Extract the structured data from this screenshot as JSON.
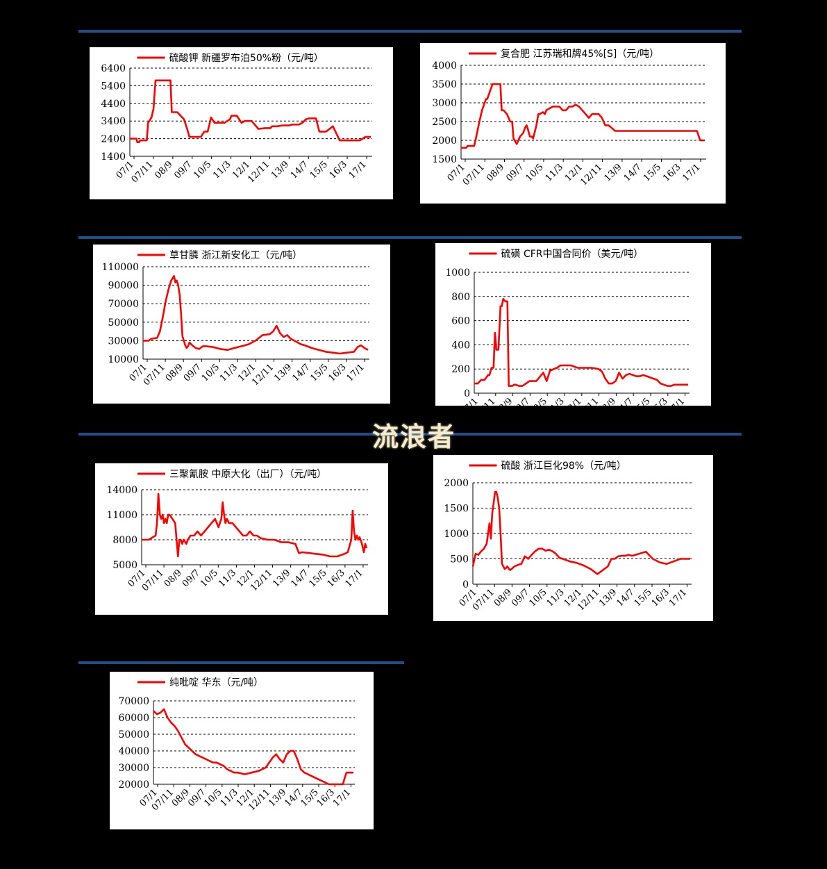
{
  "watermark": "流浪者",
  "colors": {
    "line": "#ff0000",
    "rule": "#1f4e8c",
    "grid": "#000000",
    "background": "#000000"
  },
  "chart_data": [
    {
      "type": "line",
      "title": "",
      "series": [
        {
          "name": "硫酸钾 新疆罗布泊50%粉（元/吨）",
          "x": [
            0,
            10,
            11,
            14,
            15,
            25,
            26,
            27,
            32,
            35,
            38,
            42,
            45,
            55,
            60,
            62,
            70,
            80,
            85,
            88,
            95,
            100,
            105,
            110,
            115,
            120,
            125,
            130,
            140,
            148,
            150,
            158,
            165,
            170,
            173,
            180,
            190,
            200,
            208,
            210,
            218,
            225,
            230,
            235,
            240,
            250,
            255,
            260,
            265,
            275,
            280,
            290,
            300,
            310,
            320,
            330,
            335,
            340,
            348,
            350,
            356
          ],
          "y": [
            2400,
            2400,
            2200,
            2200,
            2300,
            2300,
            2800,
            3300,
            3600,
            4100,
            5700,
            5700,
            5700,
            5700,
            5700,
            3900,
            3900,
            3500,
            2900,
            2500,
            2500,
            2500,
            2500,
            2800,
            2800,
            3600,
            3300,
            3300,
            3300,
            3500,
            3700,
            3700,
            3300,
            3400,
            3400,
            3400,
            2950,
            3000,
            3000,
            3100,
            3100,
            3150,
            3150,
            3150,
            3200,
            3200,
            3300,
            3500,
            3550,
            3550,
            2800,
            2800,
            3100,
            2300,
            2300,
            2300,
            2300,
            2300,
            2500,
            2500,
            2500
          ],
          "x_min": 0,
          "x_max": 356
        }
      ],
      "xticks": [
        "07/1",
        "07/11",
        "08/9",
        "09/7",
        "10/5",
        "11/3",
        "12/1",
        "12/11",
        "13/9",
        "14/7",
        "15/5",
        "16/3",
        "17/1"
      ],
      "yticks": [
        1400,
        2400,
        3400,
        4400,
        5400,
        6400
      ],
      "ylim": [
        1400,
        6400
      ],
      "grid": true,
      "legend": "top"
    },
    {
      "type": "line",
      "title": "",
      "series": [
        {
          "name": "复合肥 江苏瑞和牌45%[S]（元/吨）",
          "x": [
            0,
            8,
            10,
            20,
            22,
            28,
            32,
            38,
            40,
            42,
            48,
            52,
            60,
            62,
            65,
            70,
            75,
            78,
            80,
            85,
            90,
            95,
            98,
            100,
            102,
            105,
            108,
            110,
            115,
            118,
            120,
            125,
            128,
            130,
            140,
            145,
            150,
            155,
            160,
            165,
            170,
            175,
            180,
            190,
            195,
            200,
            205,
            210,
            215,
            220,
            225,
            232,
            235,
            240,
            245,
            360,
            365,
            372
          ],
          "y": [
            1800,
            1800,
            1850,
            1850,
            2000,
            2500,
            2800,
            3100,
            3100,
            3200,
            3500,
            3500,
            3500,
            2800,
            2800,
            2700,
            2500,
            2500,
            2050,
            1900,
            2100,
            2200,
            2350,
            2400,
            2300,
            2100,
            2100,
            2050,
            2400,
            2700,
            2700,
            2750,
            2700,
            2800,
            2900,
            2900,
            2900,
            2800,
            2800,
            2900,
            2900,
            2950,
            2900,
            2700,
            2600,
            2700,
            2700,
            2700,
            2600,
            2400,
            2400,
            2300,
            2250,
            2250,
            2250,
            2250,
            2000,
            2000
          ],
          "x_min": 0,
          "x_max": 372
        }
      ],
      "xticks": [
        "07/1",
        "07/11",
        "08/9",
        "09/7",
        "10/5",
        "11/3",
        "12/1",
        "12/11",
        "13/9",
        "14/7",
        "15/5",
        "16/3",
        "17/1"
      ],
      "yticks": [
        1500,
        2000,
        2500,
        3000,
        3500,
        4000
      ],
      "ylim": [
        1500,
        4000
      ],
      "grid": true,
      "legend": "top"
    },
    {
      "type": "line",
      "title": "",
      "series": [
        {
          "name": "草甘膦 浙江新安化工（元/吨）",
          "x": [
            0,
            8,
            12,
            20,
            24,
            28,
            32,
            36,
            40,
            44,
            46,
            48,
            50,
            52,
            54,
            56,
            58,
            60,
            62,
            64,
            66,
            70,
            75,
            80,
            85,
            90,
            100,
            110,
            120,
            130,
            140,
            150,
            160,
            170,
            180,
            185,
            190,
            195,
            200,
            205,
            210,
            215,
            220,
            225,
            230,
            240,
            250,
            260,
            270,
            280,
            290,
            300,
            305,
            310,
            315,
            320
          ],
          "y": [
            30000,
            30000,
            32000,
            33000,
            40000,
            55000,
            72000,
            85000,
            95000,
            100000,
            93000,
            95000,
            90000,
            80000,
            60000,
            35000,
            30000,
            25000,
            22000,
            24000,
            28000,
            25000,
            22000,
            21000,
            24000,
            24000,
            23000,
            21000,
            20000,
            22000,
            24000,
            26000,
            30000,
            36000,
            37000,
            40000,
            46000,
            38000,
            34000,
            36000,
            32000,
            30000,
            28000,
            26000,
            25000,
            22000,
            20000,
            18000,
            17000,
            16000,
            17000,
            18000,
            23000,
            25000,
            22000,
            20000
          ],
          "x_min": 0,
          "x_max": 320
        }
      ],
      "xticks": [
        "07/1",
        "07/11",
        "08/9",
        "09/7",
        "10/5",
        "11/3",
        "12/1",
        "12/11",
        "13/9",
        "14/7",
        "15/5",
        "16/3",
        "17/1"
      ],
      "yticks": [
        10000,
        30000,
        50000,
        70000,
        90000,
        110000
      ],
      "ylim": [
        10000,
        110000
      ],
      "grid": true,
      "legend": "top"
    },
    {
      "type": "line",
      "title": "",
      "series": [
        {
          "name": "硫磺 CFR中国合同价（美元/吨）",
          "x": [
            0,
            5,
            10,
            15,
            20,
            22,
            25,
            28,
            30,
            32,
            35,
            38,
            40,
            42,
            45,
            48,
            50,
            52,
            55,
            58,
            60,
            65,
            70,
            80,
            90,
            100,
            105,
            110,
            112,
            115,
            120,
            125,
            130,
            140,
            150,
            160,
            170,
            180,
            185,
            190,
            195,
            200,
            205,
            210,
            215,
            220,
            225,
            230,
            235,
            240,
            245,
            250,
            255,
            260,
            265,
            270,
            275,
            280,
            285,
            290,
            300,
            310
          ],
          "y": [
            80,
            80,
            110,
            110,
            150,
            150,
            210,
            210,
            500,
            360,
            360,
            720,
            720,
            780,
            760,
            760,
            60,
            60,
            60,
            70,
            70,
            60,
            60,
            100,
            100,
            170,
            100,
            190,
            190,
            200,
            210,
            230,
            230,
            230,
            210,
            210,
            210,
            200,
            180,
            120,
            80,
            80,
            100,
            170,
            120,
            150,
            160,
            150,
            140,
            140,
            150,
            140,
            130,
            120,
            110,
            80,
            70,
            60,
            60,
            70,
            70,
            70
          ],
          "x_min": 0,
          "x_max": 310
        }
      ],
      "xticks": [
        "07/1",
        "07/11",
        "08/9",
        "09/7",
        "10/5",
        "11/3",
        "12/1",
        "12/11",
        "13/9",
        "14/7",
        "15/5",
        "16/3",
        "17/1"
      ],
      "yticks": [
        0,
        200,
        400,
        600,
        800,
        1000
      ],
      "ylim": [
        0,
        1000
      ],
      "grid": true,
      "legend": "top"
    },
    {
      "type": "line",
      "title": "",
      "series": [
        {
          "name": "三聚氰胺 中原大化（出厂）（元/吨）",
          "x": [
            0,
            10,
            20,
            22,
            24,
            26,
            28,
            30,
            32,
            34,
            36,
            38,
            40,
            44,
            48,
            52,
            54,
            56,
            58,
            60,
            64,
            66,
            70,
            75,
            80,
            85,
            90,
            95,
            100,
            105,
            110,
            114,
            116,
            118,
            120,
            122,
            125,
            130,
            135,
            140,
            145,
            150,
            155,
            160,
            165,
            170,
            180,
            190,
            200,
            210,
            220,
            225,
            230,
            240,
            250,
            260,
            270,
            280,
            290,
            295,
            300,
            302,
            304,
            306,
            308,
            310,
            312,
            315,
            318,
            320,
            322
          ],
          "y": [
            8000,
            8000,
            8500,
            10000,
            13500,
            11000,
            10500,
            11000,
            10000,
            10500,
            10000,
            11000,
            11000,
            10500,
            10000,
            6000,
            8000,
            8000,
            7500,
            8000,
            7500,
            8000,
            8500,
            8500,
            9000,
            8500,
            9000,
            9500,
            10000,
            10500,
            9500,
            10500,
            12500,
            11000,
            10000,
            10500,
            10000,
            10000,
            9500,
            9000,
            8500,
            8500,
            9000,
            8500,
            8500,
            8200,
            8000,
            8000,
            7700,
            7700,
            7500,
            6400,
            6500,
            6400,
            6300,
            6200,
            6000,
            6000,
            6300,
            6500,
            8000,
            11500,
            9000,
            8000,
            8500,
            8000,
            8300,
            7600,
            6500,
            7500,
            7000
          ],
          "x_min": 0,
          "x_max": 322
        }
      ],
      "xticks": [
        "07/1",
        "07/11",
        "08/9",
        "09/7",
        "10/5",
        "11/3",
        "12/1",
        "12/11",
        "13/9",
        "14/7",
        "15/5",
        "16/3",
        "17/1"
      ],
      "yticks": [
        5000,
        8000,
        11000,
        14000
      ],
      "ylim": [
        5000,
        14000
      ],
      "grid": true,
      "legend": "top"
    },
    {
      "type": "line",
      "title": "",
      "series": [
        {
          "name": "硫酸 浙江巨化98%（元/吨）",
          "x": [
            0,
            4,
            8,
            12,
            16,
            20,
            24,
            26,
            28,
            30,
            32,
            34,
            36,
            38,
            40,
            42,
            44,
            46,
            48,
            50,
            52,
            54,
            56,
            60,
            65,
            70,
            75,
            80,
            85,
            90,
            95,
            100,
            105,
            110,
            115,
            120,
            125,
            130,
            140,
            150,
            160,
            170,
            180,
            190,
            195,
            200,
            205,
            210,
            215,
            220,
            225,
            230,
            240,
            250,
            260,
            270,
            280,
            290,
            300,
            310,
            314
          ],
          "y": [
            350,
            600,
            580,
            650,
            700,
            800,
            1200,
            900,
            1400,
            1600,
            1820,
            1820,
            1700,
            1500,
            1000,
            400,
            350,
            300,
            320,
            350,
            300,
            280,
            300,
            350,
            380,
            400,
            550,
            500,
            580,
            650,
            700,
            700,
            660,
            680,
            650,
            600,
            520,
            500,
            450,
            420,
            370,
            300,
            200,
            300,
            350,
            500,
            500,
            550,
            560,
            560,
            580,
            560,
            600,
            640,
            500,
            430,
            400,
            450,
            500,
            500,
            500
          ],
          "x_min": 0,
          "x_max": 314
        }
      ],
      "xticks": [
        "07/1",
        "07/11",
        "08/9",
        "09/7",
        "10/5",
        "11/3",
        "12/1",
        "12/11",
        "13/9",
        "14/7",
        "15/5",
        "16/3",
        "17/1"
      ],
      "yticks": [
        0,
        500,
        1000,
        1500,
        2000
      ],
      "ylim": [
        0,
        2000
      ],
      "grid": true,
      "legend": "top"
    },
    {
      "type": "line",
      "title": "",
      "series": [
        {
          "name": "纯吡啶 华东（元/吨）",
          "x": [
            0,
            5,
            10,
            15,
            20,
            25,
            30,
            35,
            40,
            45,
            50,
            55,
            60,
            65,
            70,
            75,
            80,
            85,
            90,
            95,
            100,
            105,
            110,
            115,
            120,
            130,
            140,
            150,
            160,
            165,
            170,
            175,
            180,
            185,
            190,
            195,
            200,
            205,
            210,
            215,
            220,
            230,
            240,
            250,
            270,
            272,
            275,
            285
          ],
          "y": [
            64000,
            62000,
            63000,
            65000,
            60000,
            57000,
            55000,
            52000,
            48000,
            44000,
            42000,
            40000,
            38000,
            37000,
            36000,
            35000,
            34000,
            33000,
            33000,
            32000,
            31000,
            29000,
            28000,
            27000,
            27000,
            26000,
            27000,
            28000,
            30000,
            33000,
            36000,
            38000,
            35000,
            33000,
            38000,
            40000,
            40000,
            35000,
            29000,
            27000,
            26000,
            24000,
            22000,
            20000,
            20000,
            23000,
            27000,
            27000
          ],
          "x_min": 0,
          "x_max": 285
        }
      ],
      "xticks": [
        "07/1",
        "07/11",
        "08/9",
        "09/7",
        "10/5",
        "11/3",
        "12/1",
        "12/11",
        "13/9",
        "14/7",
        "15/5",
        "16/3",
        "17/1"
      ],
      "yticks": [
        20000,
        30000,
        40000,
        50000,
        60000,
        70000
      ],
      "ylim": [
        20000,
        70000
      ],
      "grid": true,
      "legend": "top"
    }
  ]
}
